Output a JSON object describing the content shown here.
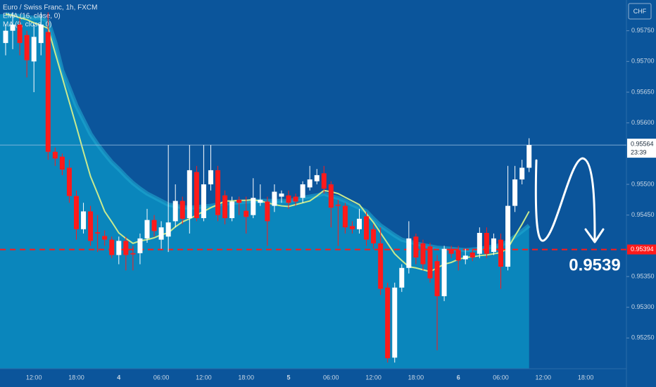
{
  "chart_data": {
    "type": "candlestick",
    "title": "Euro / Swiss Franc, 1h, FXCM",
    "currency": "CHF",
    "up_color": "#ffffff",
    "down_color": "#ff1a1a",
    "categories": [
      null,
      null,
      null,
      null,
      "12:00",
      null,
      null,
      null,
      null,
      null,
      "18:00",
      null,
      null,
      null,
      null,
      null,
      "4",
      null,
      null,
      null,
      null,
      null,
      "06:00",
      null,
      null,
      null,
      null,
      null,
      "12:00",
      null,
      null,
      null,
      null,
      null,
      "18:00",
      null,
      null,
      null,
      null,
      null,
      "5",
      null,
      null,
      null,
      null,
      null,
      "06:00",
      null,
      null,
      null,
      null,
      null,
      "12:00",
      null,
      null,
      null,
      null,
      null,
      "18:00",
      null,
      null,
      null,
      null,
      null,
      "6",
      null,
      null,
      null,
      null,
      null,
      "06:00",
      null,
      null,
      null,
      null,
      null,
      "12:00",
      null,
      null,
      null,
      null,
      null,
      "18:00",
      null,
      null,
      null,
      null,
      null
    ],
    "open": [
      0.9573,
      0.9575,
      0.9576,
      0.95743,
      0.957,
      0.9573,
      0.95748,
      0.95553,
      0.95545,
      0.95527,
      0.95481,
      0.95427,
      0.95456,
      0.95422,
      0.95416,
      0.9541,
      0.95385,
      0.95408,
      0.95388,
      0.95388,
      0.95412,
      0.95442,
      0.9541,
      0.95415,
      0.9544,
      0.95473,
      0.95445,
      0.9552,
      0.95445,
      0.955,
      0.95523,
      0.95482,
      0.95445,
      0.95475,
      0.95457,
      0.9545,
      0.9547,
      0.95472,
      0.95465,
      0.9548,
      0.95482,
      0.9548,
      0.95478,
      0.95495,
      0.95505,
      0.95518,
      0.955,
      0.95467,
      0.95465,
      0.95432,
      0.95427,
      0.95448,
      0.95427,
      0.95404,
      0.95332,
      0.95218,
      0.95332,
      0.95364,
      0.95415,
      0.95404,
      0.95399,
      0.95375,
      0.95318,
      0.95395,
      0.95393,
      0.95378,
      0.95389,
      0.95387,
      0.95421,
      0.9539,
      0.9541,
      0.95366,
      0.95465,
      0.95508,
      0.95527,
      null,
      null,
      null,
      null,
      null,
      null,
      null,
      null,
      null,
      null,
      null,
      null,
      null
    ],
    "high": [
      0.9576,
      0.9578,
      0.9577,
      0.9575,
      0.9576,
      0.9578,
      0.9578,
      0.9556,
      0.9555,
      0.9554,
      0.9549,
      0.9547,
      0.95465,
      0.9545,
      0.95425,
      0.95415,
      0.95415,
      0.95415,
      0.954,
      0.9542,
      0.9546,
      0.9545,
      0.9544,
      0.95564,
      0.955,
      0.9548,
      0.95564,
      0.9553,
      0.95564,
      0.95564,
      0.9553,
      0.9549,
      0.9548,
      0.9548,
      0.9548,
      0.9551,
      0.955,
      0.9548,
      0.955,
      0.9549,
      0.9549,
      0.95485,
      0.95505,
      0.9553,
      0.95525,
      0.9553,
      0.95505,
      0.95475,
      0.9547,
      0.9544,
      0.9546,
      0.95455,
      0.95435,
      0.9543,
      0.9534,
      0.9534,
      0.9537,
      0.9544,
      0.9542,
      0.9541,
      0.95405,
      0.95385,
      0.954,
      0.954,
      0.954,
      0.95395,
      0.95395,
      0.9543,
      0.9543,
      0.9542,
      0.9542,
      0.9553,
      0.9553,
      0.9554,
      0.95575,
      null,
      null,
      null,
      null,
      null,
      null,
      null,
      null,
      null,
      null,
      null,
      null,
      null
    ],
    "low": [
      0.9571,
      0.9572,
      0.9571,
      0.95674,
      0.9565,
      0.9571,
      0.9554,
      0.9553,
      0.95515,
      0.9547,
      0.9541,
      0.9542,
      0.954,
      0.9539,
      0.954,
      0.9538,
      0.9537,
      0.9536,
      0.9536,
      0.9537,
      0.95405,
      0.95415,
      0.95395,
      0.9539,
      0.9543,
      0.95435,
      0.9542,
      0.9544,
      0.9544,
      0.9549,
      0.9544,
      0.95435,
      0.9544,
      0.9545,
      0.9542,
      0.95445,
      0.95465,
      0.954,
      0.95455,
      0.9547,
      0.9546,
      0.95465,
      0.9547,
      0.9549,
      0.955,
      0.95485,
      0.9543,
      0.954,
      0.9542,
      0.9542,
      0.9542,
      0.954,
      0.95395,
      0.9532,
      0.9521,
      0.9521,
      0.95325,
      0.95355,
      0.9537,
      0.9536,
      0.9534,
      0.9523,
      0.9531,
      0.9538,
      0.9536,
      0.9537,
      0.95375,
      0.9538,
      0.9538,
      0.95385,
      0.9533,
      0.9536,
      0.95455,
      0.955,
      0.9552,
      null,
      null,
      null,
      null,
      null,
      null,
      null,
      null,
      null,
      null,
      null,
      null,
      null
    ],
    "close": [
      0.9575,
      0.9576,
      0.9573,
      0.95702,
      0.9574,
      0.9576,
      0.95553,
      0.95542,
      0.95524,
      0.95481,
      0.95427,
      0.95456,
      0.95408,
      0.9542,
      0.9541,
      0.95385,
      0.95408,
      0.95385,
      0.95386,
      0.95412,
      0.95442,
      0.95424,
      0.9543,
      0.95438,
      0.95473,
      0.95444,
      0.95523,
      0.95445,
      0.955,
      0.95523,
      0.9545,
      0.95445,
      0.95472,
      0.9547,
      0.95447,
      0.95478,
      0.95475,
      0.9544,
      0.95488,
      0.95485,
      0.9547,
      0.95472,
      0.955,
      0.95508,
      0.95515,
      0.95493,
      0.95462,
      0.95465,
      0.9543,
      0.95427,
      0.95444,
      0.9541,
      0.95404,
      0.9533,
      0.95217,
      0.95332,
      0.95364,
      0.95412,
      0.95381,
      0.9537,
      0.95347,
      0.95318,
      0.95395,
      0.95387,
      0.95376,
      0.95384,
      0.95381,
      0.95421,
      0.95387,
      0.95412,
      0.95366,
      0.95465,
      0.95508,
      0.95527,
      0.95564,
      null,
      null,
      null,
      null,
      null,
      null,
      null,
      null,
      null,
      null,
      null,
      null,
      null
    ],
    "series": [
      {
        "name": "EMA (16, close, 0)",
        "color": "#1fa8d0",
        "values": [
          0.95777,
          0.95775,
          0.95774,
          0.95772,
          0.95771,
          0.95771,
          0.95766,
          0.95731,
          0.95685,
          0.95657,
          0.95628,
          0.95605,
          0.95582,
          0.95565,
          0.9555,
          0.95536,
          0.95525,
          0.95513,
          0.95502,
          0.95493,
          0.95485,
          0.95479,
          0.95473,
          0.95467,
          0.95465,
          0.95463,
          0.95462,
          0.95463,
          0.95464,
          0.95465,
          0.95467,
          0.95469,
          0.9547,
          0.95471,
          0.95472,
          0.95473,
          0.95473,
          0.95473,
          0.95473,
          0.95473,
          0.95473,
          0.95475,
          0.95478,
          0.9548,
          0.95482,
          0.95485,
          0.95481,
          0.95478,
          0.95473,
          0.95467,
          0.95462,
          0.95456,
          0.95444,
          0.95433,
          0.95425,
          0.95417,
          0.9541,
          0.95407,
          0.95404,
          0.95401,
          0.95399,
          0.95397,
          0.95396,
          0.95395,
          0.95394,
          0.95393,
          0.95394,
          0.95395,
          0.95397,
          0.95399,
          0.95401,
          0.95407,
          0.95415,
          0.95424,
          0.95433,
          null,
          null,
          null,
          null,
          null,
          null,
          null,
          null,
          null,
          null,
          null,
          null,
          null
        ]
      },
      {
        "name": "MA (9, close, 0)",
        "color": "#c9ea8e",
        "values": [
          0.95777,
          0.95775,
          0.95771,
          0.95768,
          0.95763,
          0.95759,
          0.95754,
          0.95714,
          0.95674,
          0.95634,
          0.95594,
          0.95553,
          0.95513,
          0.95485,
          0.95456,
          0.95439,
          0.95421,
          0.95412,
          0.95404,
          0.95408,
          0.9541,
          0.95413,
          0.95418,
          0.95421,
          0.95431,
          0.95439,
          0.95444,
          0.9545,
          0.95456,
          0.95462,
          0.95467,
          0.95473,
          0.95473,
          0.95474,
          0.95474,
          0.95475,
          0.95473,
          0.9547,
          0.95467,
          0.95465,
          0.95464,
          0.95467,
          0.9547,
          0.95473,
          0.95481,
          0.9549,
          0.95488,
          0.95485,
          0.95479,
          0.95473,
          0.95467,
          0.95452,
          0.95438,
          0.95421,
          0.95404,
          0.95387,
          0.95376,
          0.95366,
          0.95364,
          0.95361,
          0.95358,
          0.95364,
          0.9537,
          0.95373,
          0.95378,
          0.95381,
          0.95382,
          0.95384,
          0.95385,
          0.95387,
          0.95389,
          0.95396,
          0.95416,
          0.95435,
          0.95456,
          null,
          null,
          null,
          null,
          null,
          null,
          null,
          null,
          null,
          null,
          null,
          null,
          null
        ]
      }
    ],
    "ylim": [
      0.952,
      0.958
    ],
    "yticks": [
      {
        "value": 0.9575,
        "label": "0.95750"
      },
      {
        "value": 0.957,
        "label": "0.95700"
      },
      {
        "value": 0.9565,
        "label": "0.95650"
      },
      {
        "value": 0.956,
        "label": "0.95600"
      },
      {
        "value": 0.955,
        "label": "0.95500"
      },
      {
        "value": 0.9545,
        "label": "0.95450"
      },
      {
        "value": 0.9535,
        "label": "0.95350"
      },
      {
        "value": 0.953,
        "label": "0.95300"
      },
      {
        "value": 0.9525,
        "label": "0.95250"
      }
    ],
    "last_price": {
      "value": 0.95564,
      "label": "0.95564"
    },
    "countdown": "23:39",
    "level": {
      "value": 0.95394,
      "label": "0.95394",
      "color": "#ff1a1a"
    },
    "annotation": "0.9539"
  }
}
